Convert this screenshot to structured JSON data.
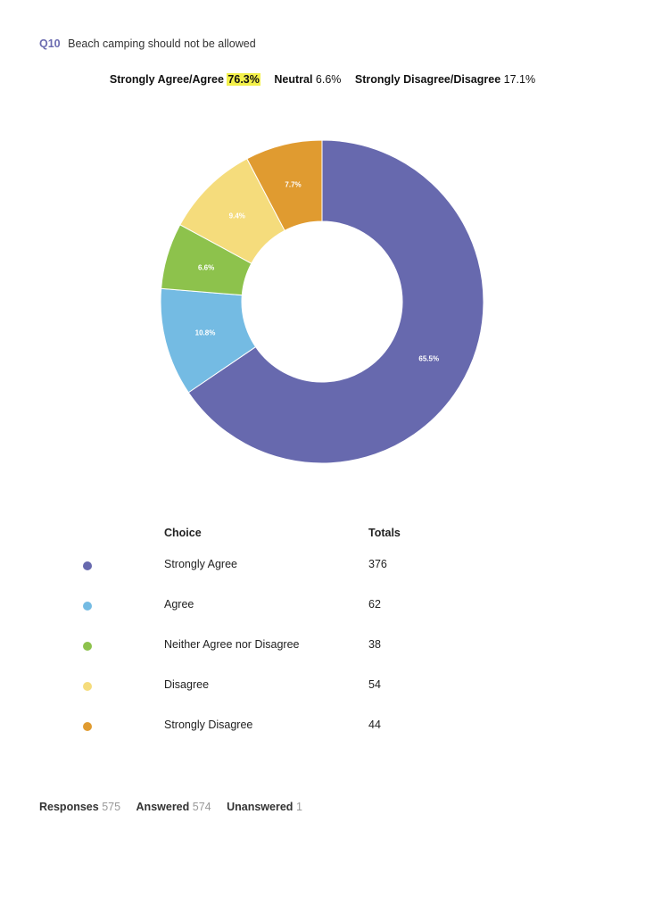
{
  "question": {
    "number": "Q10",
    "text": "Beach camping should not be allowed"
  },
  "summary": {
    "agree_label": "Strongly Agree/Agree",
    "agree_value": "76.3%",
    "neutral_label": "Neutral",
    "neutral_value": "6.6%",
    "disagree_label": "Strongly Disagree/Disagree",
    "disagree_value": "17.1%"
  },
  "chart_data": {
    "type": "pie",
    "style": "donut",
    "categories": [
      "Strongly Agree",
      "Agree",
      "Neither Agree nor Disagree",
      "Disagree",
      "Strongly Disagree"
    ],
    "values": [
      65.5,
      10.8,
      6.6,
      9.4,
      7.7
    ],
    "labels": [
      "65.5%",
      "10.8%",
      "6.6%",
      "9.4%",
      "7.7%"
    ],
    "colors": [
      "#6769ae",
      "#74bbe3",
      "#8dc24c",
      "#f5dc7c",
      "#e09b30"
    ],
    "start": "top, clockwise"
  },
  "table": {
    "header_choice": "Choice",
    "header_totals": "Totals",
    "rows": [
      {
        "choice": "Strongly Agree",
        "total": "376",
        "color": "#6769ae"
      },
      {
        "choice": "Agree",
        "total": "62",
        "color": "#74bbe3"
      },
      {
        "choice": "Neither Agree nor Disagree",
        "total": "38",
        "color": "#8dc24c"
      },
      {
        "choice": "Disagree",
        "total": "54",
        "color": "#f5dc7c"
      },
      {
        "choice": "Strongly Disagree",
        "total": "44",
        "color": "#e09b30"
      }
    ]
  },
  "footer": {
    "responses_label": "Responses",
    "responses_value": "575",
    "answered_label": "Answered",
    "answered_value": "574",
    "unanswered_label": "Unanswered",
    "unanswered_value": "1"
  }
}
